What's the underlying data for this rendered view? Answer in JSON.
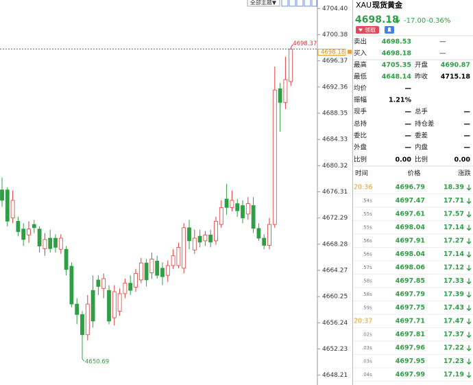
{
  "toolbar": {
    "theme": "全部主题▼"
  },
  "chart_data": {
    "type": "candlestick",
    "up_color": "#e53935",
    "down_color": "#2f9e44",
    "last_color": "#3a6fd8",
    "ylim": [
      4646.7,
      4705.7
    ],
    "yticks": [
      {
        "value": 4704.4,
        "label": "4704.40"
      },
      4700.38,
      4696.37,
      4692.36,
      4688.35,
      4684.33,
      4680.32,
      4676.31,
      4672.29,
      4668.28,
      4664.27,
      4660.25,
      4656.24,
      4652.23,
      4648.21
    ],
    "open": [
      4676.6,
      4676.6,
      4672.3,
      4671.8,
      4670.6,
      4669.7,
      4671.3,
      4670.6,
      4667.6,
      4669.2,
      4669.2,
      4667.5,
      4667.5,
      4664.9,
      4659.1,
      4657.5,
      4654.4,
      4661.2,
      4662.8,
      4661.5,
      4661.2,
      4657.0,
      4658.0,
      4660.7,
      4662.3,
      4661.7,
      4662.8,
      4665.4,
      4663.9,
      4665.7,
      4664.6,
      4663.5,
      4665.0,
      4665.0,
      4664.6,
      4670.8,
      4667.4,
      4669.5,
      4668.8,
      4669.7,
      4668.8,
      4671.3,
      4675.2,
      4673.9,
      4674.5,
      4674.2,
      4672.9,
      4674.2,
      4670.7,
      4669.2,
      4668.1,
      4671.3,
      4692.1,
      4690.0,
      4693.2
    ],
    "high": [
      4678.5,
      4677.0,
      4676.5,
      4672.5,
      4671.5,
      4671.8,
      4672.0,
      4671.0,
      4670.0,
      4670.5,
      4669.8,
      4669.8,
      4668.0,
      4665.5,
      4660.0,
      4658.0,
      4660.5,
      4663.5,
      4663.5,
      4663.8,
      4662.0,
      4662.0,
      4661.5,
      4663.0,
      4663.5,
      4664.5,
      4666.2,
      4666.0,
      4667.0,
      4666.5,
      4665.5,
      4665.8,
      4667.5,
      4668.5,
      4671.5,
      4672.0,
      4670.5,
      4670.5,
      4670.3,
      4670.5,
      4672.5,
      4675.0,
      4677.5,
      4676.5,
      4675.2,
      4675.0,
      4675.5,
      4675.5,
      4671.5,
      4669.8,
      4672.3,
      4695.5,
      4693.0,
      4697.0,
      4698.37
    ],
    "low": [
      4674.0,
      4671.0,
      4671.5,
      4669.5,
      4668.0,
      4668.5,
      4670.0,
      4667.0,
      4666.5,
      4667.0,
      4667.0,
      4666.8,
      4663.5,
      4658.6,
      4656.0,
      4650.69,
      4653.5,
      4655.5,
      4660.5,
      4660.0,
      4656.0,
      4655.8,
      4657.3,
      4660.0,
      4660.5,
      4661.0,
      4662.3,
      4661.8,
      4663.0,
      4663.0,
      4662.0,
      4662.5,
      4664.5,
      4664.6,
      4663.8,
      4667.5,
      4666.8,
      4667.8,
      4668.0,
      4667.8,
      4668.2,
      4670.8,
      4672.8,
      4673.3,
      4672.5,
      4671.5,
      4672.0,
      4670.0,
      4668.8,
      4667.5,
      4667.5,
      4670.8,
      4685.5,
      4689.0,
      4692.5
    ],
    "close": [
      4675.0,
      4671.8,
      4675.0,
      4670.2,
      4669.0,
      4670.6,
      4670.8,
      4668.0,
      4669.0,
      4667.6,
      4667.8,
      4669.2,
      4664.4,
      4659.1,
      4657.5,
      4654.4,
      4659.1,
      4656.5,
      4661.8,
      4663.0,
      4656.5,
      4661.0,
      4660.7,
      4662.3,
      4661.2,
      4663.8,
      4665.4,
      4662.8,
      4666.0,
      4663.5,
      4663.3,
      4665.0,
      4666.5,
      4667.8,
      4670.8,
      4668.8,
      4669.2,
      4668.6,
      4669.7,
      4668.6,
      4671.8,
      4673.9,
      4673.9,
      4675.0,
      4673.4,
      4672.3,
      4674.5,
      4670.7,
      4669.2,
      4668.1,
      4671.3,
      4691.9,
      4690.0,
      4693.5,
      4698.18
    ]
  },
  "header": {
    "symbol": "XAU",
    "name": "现货黄金",
    "price": "4698.18",
    "change": "-17.00",
    "change_pct": "-0.36%",
    "button": "领取"
  },
  "quote": [
    [
      "卖出",
      "4698.53",
      "—"
    ],
    [
      "买入",
      "4698.18",
      "—"
    ],
    [
      "最高",
      "4705.35",
      "开盘",
      "4690.87"
    ],
    [
      "最低",
      "4648.14",
      "昨收",
      "4715.18"
    ],
    [
      "均价",
      "—"
    ],
    [
      "振幅",
      "1.21%"
    ],
    [
      "现手",
      "—",
      "总手",
      "—"
    ],
    [
      "总持",
      "—",
      "持仓差",
      "—"
    ],
    [
      "委比",
      "—",
      "委差",
      "—"
    ],
    [
      "外盘",
      "—",
      "内盘",
      "—"
    ],
    [
      "比例",
      "0.00",
      "比例",
      "0.00"
    ]
  ],
  "ticks_header": [
    "时间",
    "价格",
    "涨跌"
  ],
  "ticks": [
    {
      "time": "20:36",
      "price": "4696.79",
      "change": "18.39"
    },
    {
      "time": ".54s",
      "price": "4697.47",
      "change": "17.71"
    },
    {
      "time": ".55s",
      "price": "4697.61",
      "change": "17.57"
    },
    {
      "time": ".55s",
      "price": "4698.04",
      "change": "17.14"
    },
    {
      "time": ".56s",
      "price": "4697.91",
      "change": "17.27"
    },
    {
      "time": ".56s",
      "price": "4698.04",
      "change": "17.14"
    },
    {
      "time": ".57s",
      "price": "4698.06",
      "change": "17.12"
    },
    {
      "time": ".58s",
      "price": "4697.85",
      "change": "17.33"
    },
    {
      "time": ".58s",
      "price": "4697.79",
      "change": "17.39"
    },
    {
      "time": ".59s",
      "price": "4697.75",
      "change": "17.43"
    },
    {
      "time": "20:37",
      "price": "4697.71",
      "change": "17.47"
    },
    {
      "time": ".02s",
      "price": "4697.81",
      "change": "17.37"
    },
    {
      "time": ".03s",
      "price": "4697.96",
      "change": "17.22"
    },
    {
      "time": ".03s",
      "price": "4697.95",
      "change": "17.23"
    },
    {
      "time": ".04s",
      "price": "4697.99",
      "change": "17.19"
    }
  ]
}
